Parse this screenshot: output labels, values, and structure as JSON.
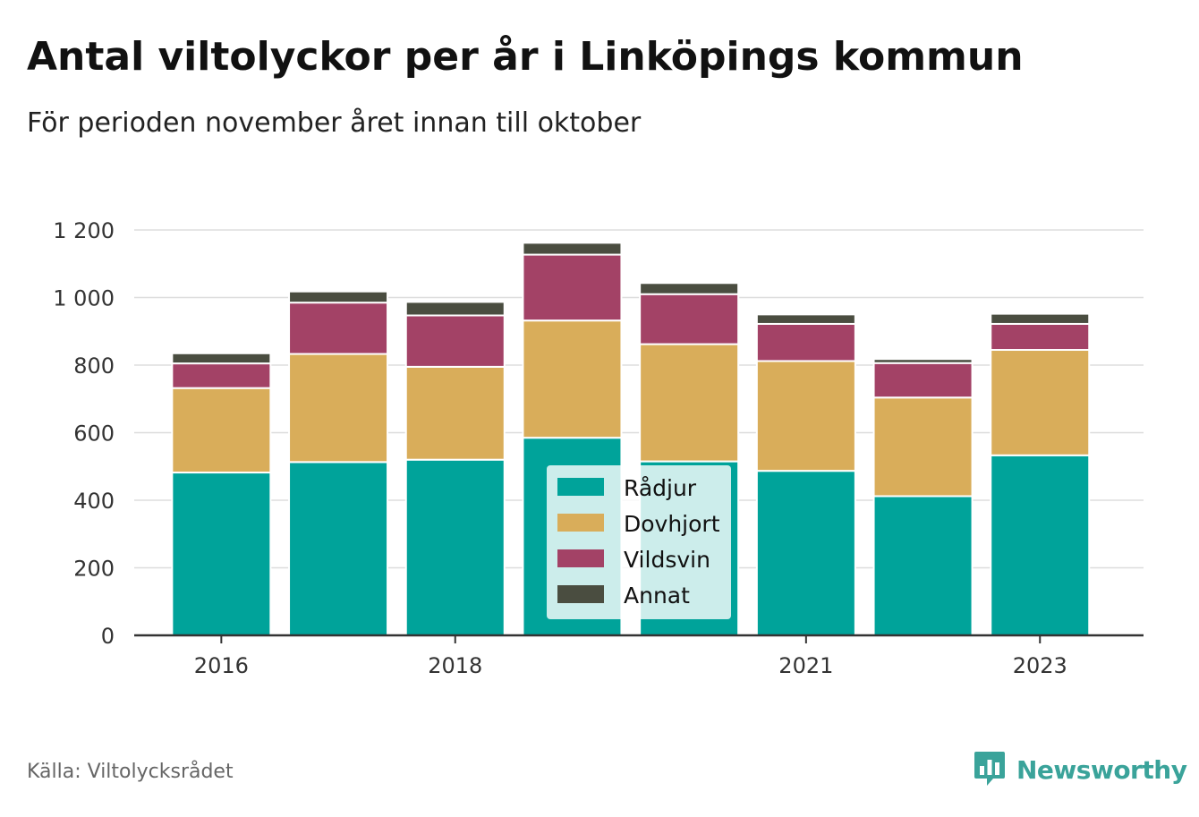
{
  "header": {
    "title": "Antal viltolyckor per år i Linköpings kommun",
    "subtitle": "För perioden november året innan till oktober"
  },
  "footer": {
    "source": "Källa: Viltolycksrådet",
    "brand": "Newsworthy",
    "brand_icon": "bar-chart-speech-bubble-icon"
  },
  "colors": {
    "Rådjur": "#00a39a",
    "Dovhjort": "#d9ad5a",
    "Vildsvin": "#a34266",
    "Annat": "#4a4d40",
    "grid": "#dddddd",
    "axis": "#333333",
    "brand": "#3aa39a"
  },
  "chart_data": {
    "type": "bar",
    "stacked": true,
    "categories": [
      "2016",
      "2017",
      "2018",
      "2019",
      "2020",
      "2021",
      "2022",
      "2023"
    ],
    "x_tick_labels": [
      "2016",
      "",
      "2018",
      "",
      "",
      "2021",
      "",
      "2023"
    ],
    "y_ticks": [
      0,
      200,
      400,
      600,
      800,
      1000,
      1200
    ],
    "y_tick_labels": [
      "0",
      "200",
      "400",
      "600",
      "800",
      "1 000",
      "1 200"
    ],
    "ylim": [
      0,
      1200
    ],
    "grid": true,
    "legend_position": "center",
    "series": [
      {
        "name": "Rådjur",
        "values": [
          482,
          513,
          520,
          585,
          515,
          487,
          412,
          533
        ]
      },
      {
        "name": "Dovhjort",
        "values": [
          250,
          320,
          275,
          347,
          347,
          325,
          292,
          312
        ]
      },
      {
        "name": "Vildsvin",
        "values": [
          73,
          152,
          152,
          195,
          148,
          110,
          102,
          77
        ]
      },
      {
        "name": "Annat",
        "values": [
          30,
          33,
          40,
          35,
          33,
          28,
          12,
          30
        ]
      }
    ]
  }
}
